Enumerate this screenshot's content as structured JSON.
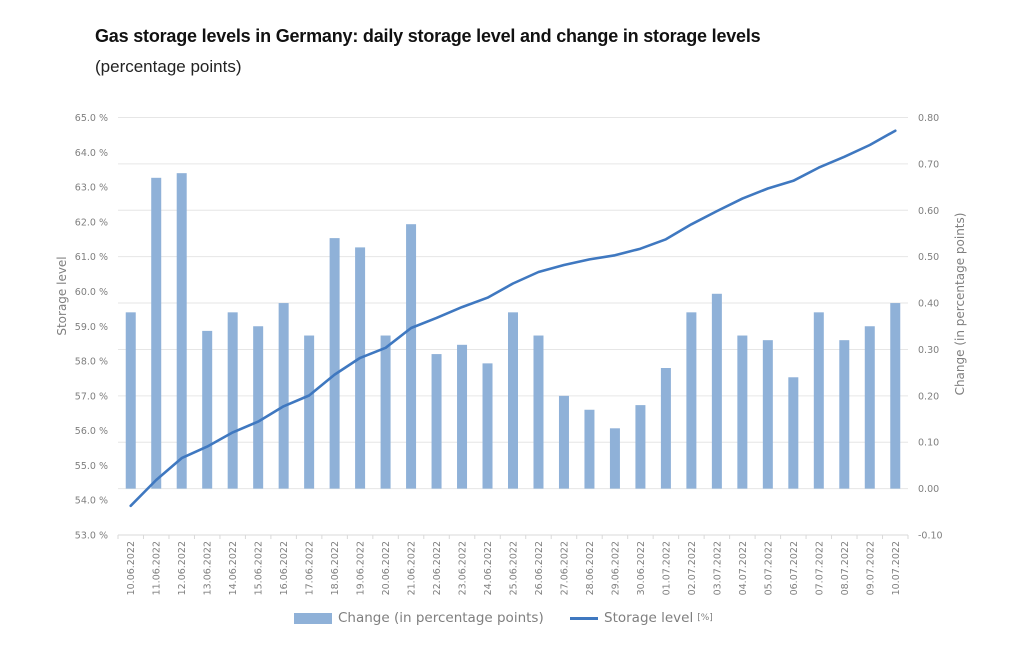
{
  "chart_data": {
    "type": "bar+line",
    "title": "Gas storage levels in Germany: daily storage level and change in storage levels",
    "subtitle": "(percentage points)",
    "categories": [
      "10.06.2022",
      "11.06.2022",
      "12.06.2022",
      "13.06.2022",
      "14.06.2022",
      "15.06.2022",
      "16.06.2022",
      "17.06.2022",
      "18.06.2022",
      "19.06.2022",
      "20.06.2022",
      "21.06.2022",
      "22.06.2022",
      "23.06.2022",
      "24.06.2022",
      "25.06.2022",
      "26.06.2022",
      "27.06.2022",
      "28.06.2022",
      "29.06.2022",
      "30.06.2022",
      "01.07.2022",
      "02.07.2022",
      "03.07.2022",
      "04.07.2022",
      "05.07.2022",
      "06.07.2022",
      "07.07.2022",
      "08.07.2022",
      "09.07.2022",
      "10.07.2022"
    ],
    "series": [
      {
        "name": "Change (in percentage points)",
        "type": "bar",
        "axis": "right",
        "color": "#8fb1d8",
        "values": [
          0.38,
          0.67,
          0.68,
          0.34,
          0.38,
          0.35,
          0.4,
          0.33,
          0.54,
          0.52,
          0.33,
          0.57,
          0.29,
          0.31,
          0.27,
          0.38,
          0.33,
          0.2,
          0.17,
          0.13,
          0.18,
          0.26,
          0.38,
          0.42,
          0.33,
          0.32,
          0.24,
          0.38,
          0.32,
          0.35,
          0.4
        ]
      },
      {
        "name": "Storage level",
        "name_unit": "[%]",
        "type": "line",
        "axis": "left",
        "color": "#3f78c0",
        "values": [
          53.84,
          54.58,
          55.21,
          55.54,
          55.95,
          56.26,
          56.7,
          57.01,
          57.61,
          58.09,
          58.38,
          58.95,
          59.24,
          59.55,
          59.82,
          60.23,
          60.56,
          60.76,
          60.92,
          61.04,
          61.23,
          61.5,
          61.93,
          62.31,
          62.67,
          62.96,
          63.18,
          63.56,
          63.87,
          64.21,
          64.62
        ]
      }
    ],
    "left_axis": {
      "label": "Storage level",
      "range": [
        53.0,
        65.0
      ],
      "ticks": [
        "53.0 %",
        "54.0 %",
        "55.0 %",
        "56.0 %",
        "57.0 %",
        "58.0 %",
        "59.0 %",
        "60.0 %",
        "61.0 %",
        "62.0 %",
        "63.0 %",
        "64.0 %",
        "65.0 %"
      ]
    },
    "right_axis": {
      "label": "Change (in percentage points)",
      "range": [
        -0.1,
        0.8
      ],
      "ticks": [
        "-0.10",
        "0.00",
        "0.10",
        "0.20",
        "0.30",
        "0.40",
        "0.50",
        "0.60",
        "0.70",
        "0.80"
      ]
    },
    "grid": "horizontal",
    "legend_position": "bottom"
  }
}
